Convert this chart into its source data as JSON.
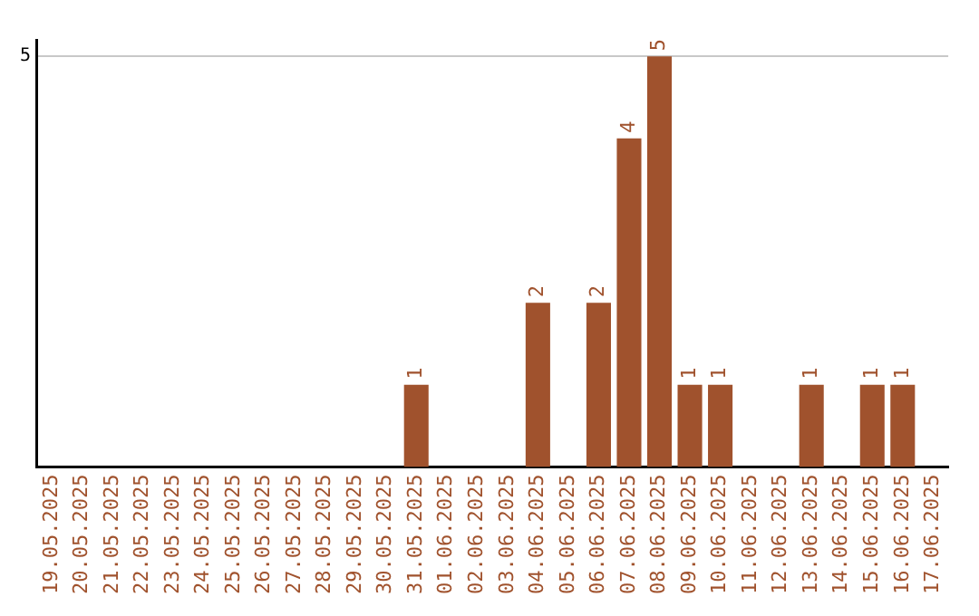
{
  "chart_data": {
    "type": "bar",
    "categories": [
      "19.05.2025",
      "20.05.2025",
      "21.05.2025",
      "22.05.2025",
      "23.05.2025",
      "24.05.2025",
      "25.05.2025",
      "26.05.2025",
      "27.05.2025",
      "28.05.2025",
      "29.05.2025",
      "30.05.2025",
      "31.05.2025",
      "01.06.2025",
      "02.06.2025",
      "03.06.2025",
      "04.06.2025",
      "05.06.2025",
      "06.06.2025",
      "07.06.2025",
      "08.06.2025",
      "09.06.2025",
      "10.06.2025",
      "11.06.2025",
      "12.06.2025",
      "13.06.2025",
      "14.06.2025",
      "15.06.2025",
      "16.06.2025",
      "17.06.2025"
    ],
    "values": [
      null,
      null,
      null,
      null,
      null,
      null,
      null,
      null,
      null,
      null,
      null,
      null,
      1,
      null,
      null,
      null,
      2,
      null,
      2,
      4,
      5,
      1,
      1,
      null,
      null,
      1,
      null,
      1,
      1,
      null
    ],
    "color": "#a0522d",
    "ylim": [
      0,
      5.2
    ],
    "yticks": [
      5
    ],
    "grid": "y",
    "data_labels": true,
    "legend": false
  }
}
